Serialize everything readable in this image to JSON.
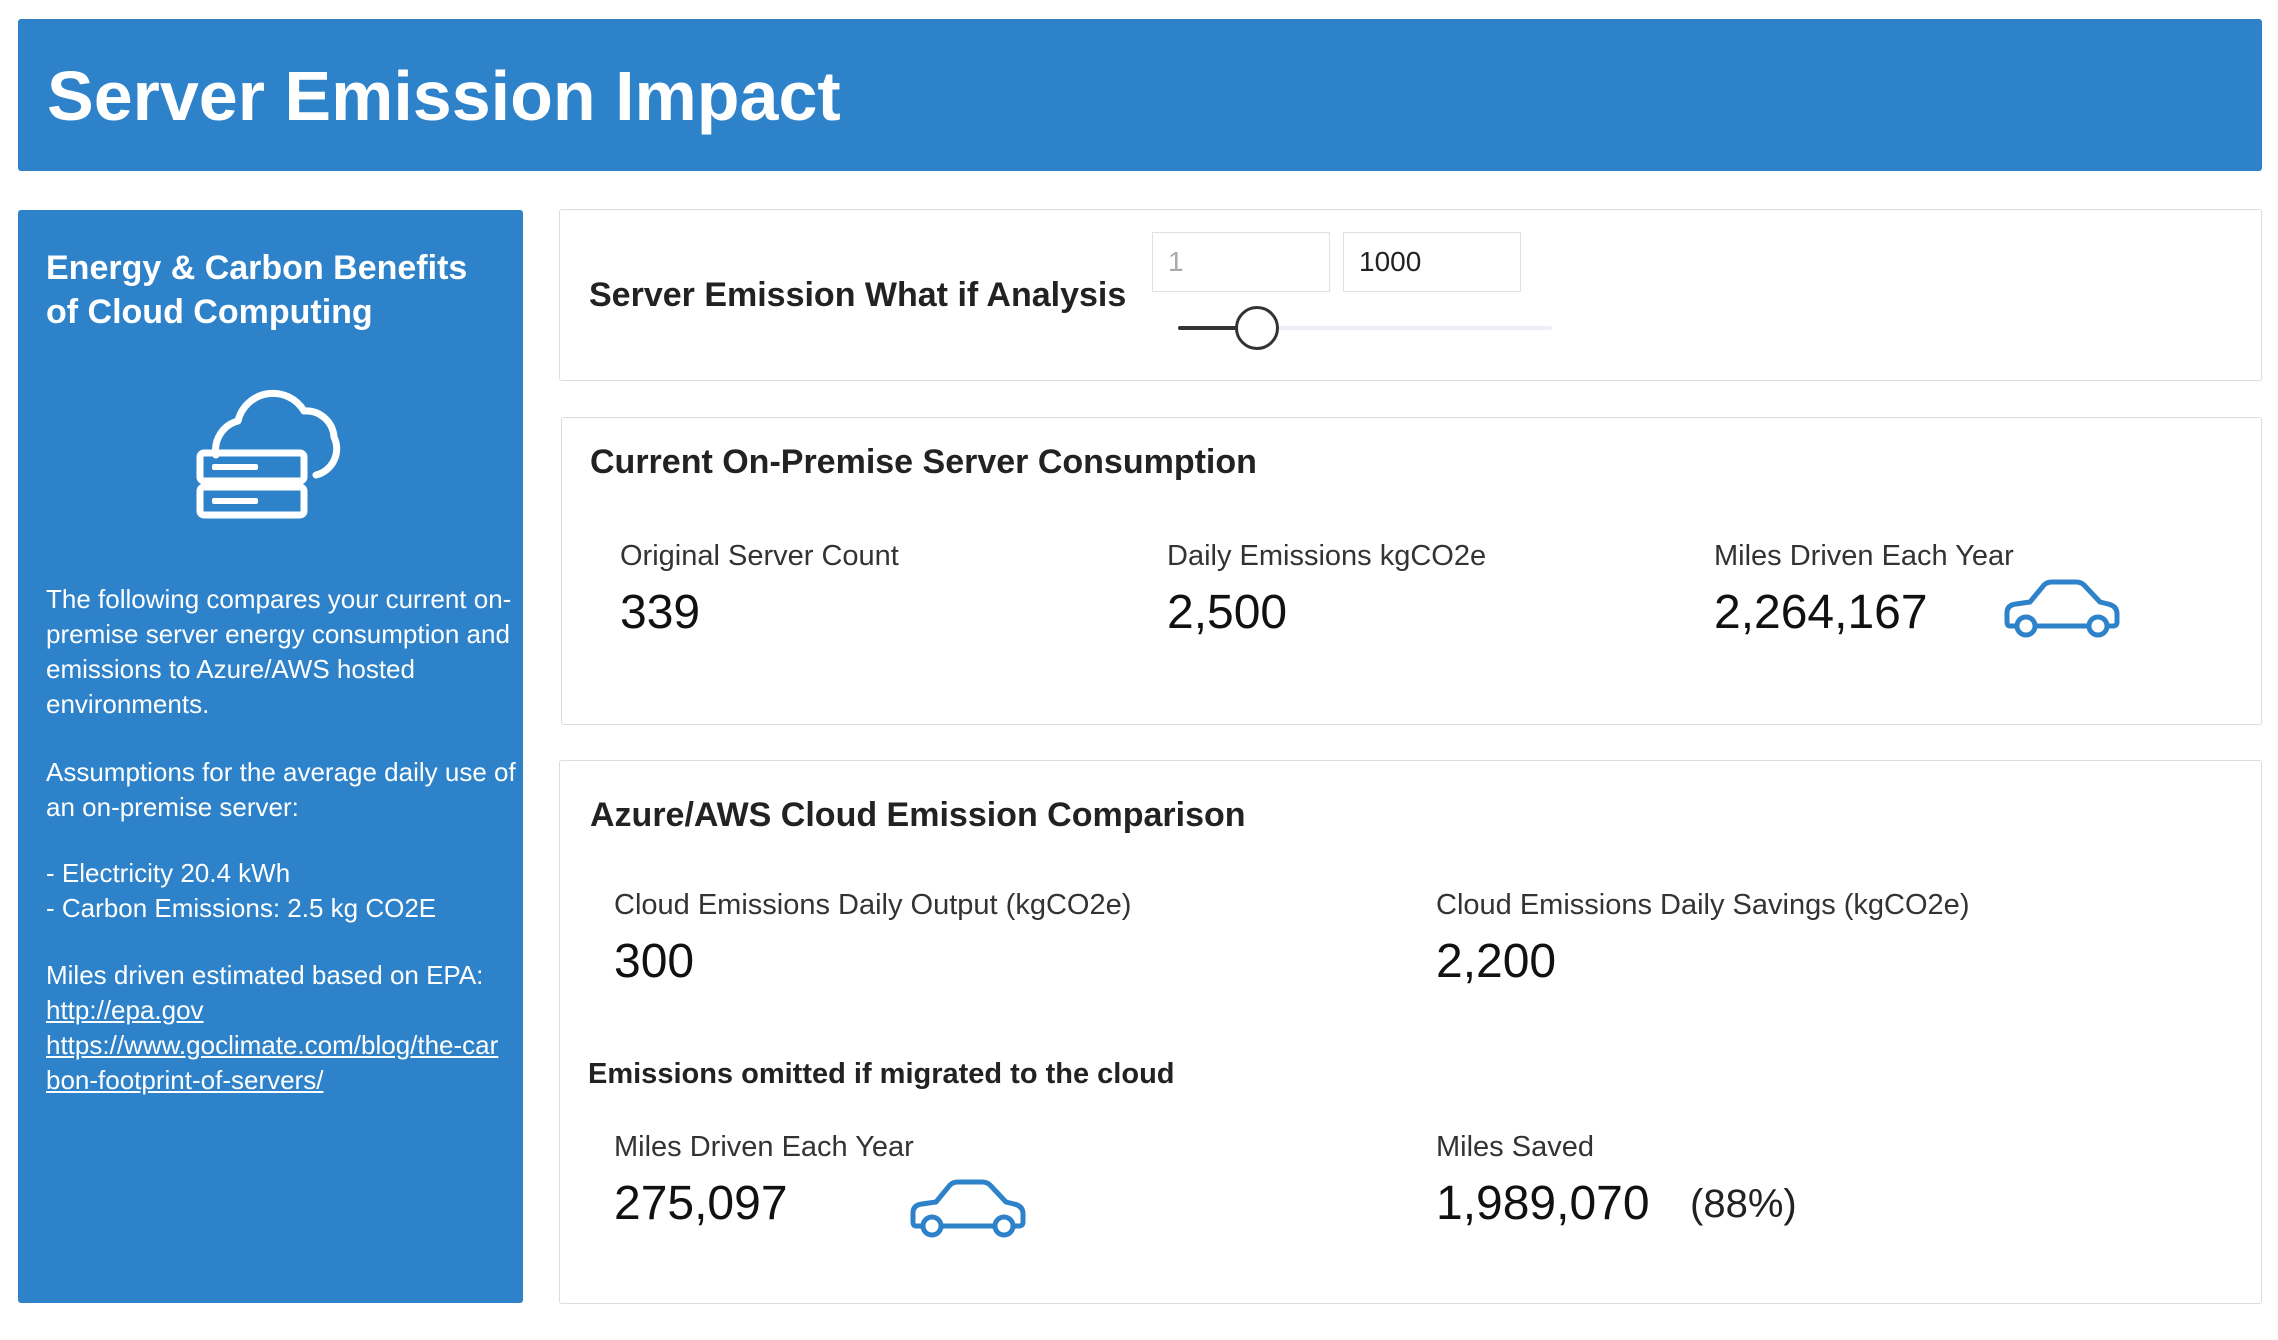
{
  "header": {
    "title": "Server Emission Impact"
  },
  "sidebar": {
    "title": "Energy & Carbon Benefits of Cloud Computing",
    "icon": "cloud-server-icon",
    "intro": "The following compares your current on-premise server energy consumption and emissions to Azure/AWS hosted environments.",
    "assumptions_heading": "Assumptions for the average daily use of an on-premise server:",
    "assumption_electricity": "- Electricity 20.4 kWh",
    "assumption_carbon": "- Carbon Emissions: 2.5 kg CO2E",
    "miles_note": "Miles driven estimated based on EPA:",
    "link_epa": "http://epa.gov",
    "link_goclimate": "https://www.goclimate.com/blog/the-carbon-footprint-of-servers/"
  },
  "what_if": {
    "title": "Server Emission What if Analysis",
    "min_value": "1",
    "max_value": "1000",
    "slider_fraction": 0.21
  },
  "current": {
    "title": "Current On-Premise Server Consumption",
    "server_count_label": "Original Server Count",
    "server_count_value": "339",
    "daily_emissions_label": "Daily Emissions kgCO2e",
    "daily_emissions_value": "2,500",
    "miles_label": "Miles Driven Each Year",
    "miles_value": "2,264,167",
    "car_icon": "car-icon"
  },
  "cloud": {
    "title": "Azure/AWS Cloud Emission Comparison",
    "output_label": "Cloud Emissions Daily Output (kgCO2e)",
    "output_value": "300",
    "savings_label": "Cloud Emissions Daily Savings (kgCO2e)",
    "savings_value": "2,200",
    "omitted_heading": "Emissions omitted if migrated to the cloud",
    "miles_label": "Miles Driven Each Year",
    "miles_value": "275,097",
    "miles_saved_label": "Miles Saved",
    "miles_saved_value": "1,989,070",
    "miles_saved_pct": "(88%)",
    "car_icon": "car-icon"
  },
  "colors": {
    "brand_blue": "#2d82c9",
    "icon_blue": "#2d82c9",
    "card_border": "#dcdcdc"
  }
}
